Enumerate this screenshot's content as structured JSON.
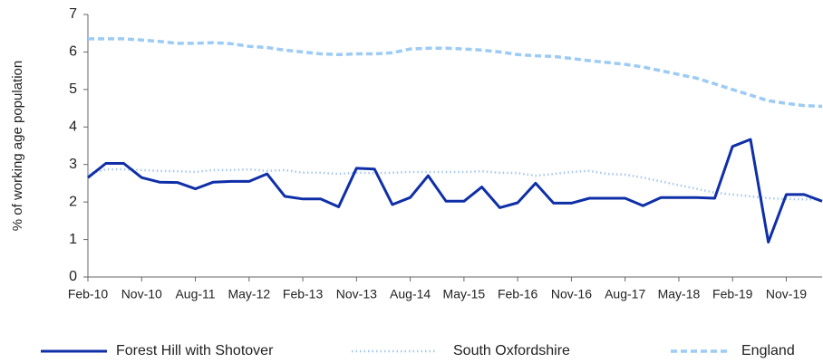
{
  "chart_data": {
    "type": "line",
    "ylabel": "% of working age population",
    "categories": [
      "Feb-10",
      null,
      null,
      "Nov-10",
      null,
      null,
      "Aug-11",
      null,
      null,
      "May-12",
      null,
      null,
      "Feb-13",
      null,
      null,
      "Nov-13",
      null,
      null,
      "Aug-14",
      null,
      null,
      "May-15",
      null,
      null,
      "Feb-16",
      null,
      null,
      "Nov-16",
      null,
      null,
      "Aug-17",
      null,
      null,
      "May-18",
      null,
      null,
      "Feb-19",
      null,
      null,
      "Nov-19",
      null,
      null
    ],
    "series": [
      {
        "name": "Forest Hill with Shotover",
        "color": "#0f2fa8",
        "dash": "solid",
        "values": [
          2.65,
          3.03,
          3.03,
          2.65,
          2.53,
          2.52,
          2.35,
          2.53,
          2.55,
          2.55,
          2.75,
          2.15,
          2.08,
          2.08,
          1.87,
          2.9,
          2.88,
          1.93,
          2.12,
          2.7,
          2.02,
          2.02,
          2.4,
          1.85,
          1.98,
          2.5,
          1.97,
          1.97,
          2.1,
          2.1,
          2.1,
          1.9,
          2.12,
          2.12,
          2.12,
          2.1,
          3.48,
          3.67,
          0.93,
          2.2,
          2.2,
          2.02
        ]
      },
      {
        "name": "South Oxfordshire",
        "color": "#a6c8ee",
        "dash": "dotted",
        "values": [
          2.75,
          2.87,
          2.87,
          2.85,
          2.83,
          2.82,
          2.8,
          2.85,
          2.85,
          2.87,
          2.83,
          2.85,
          2.78,
          2.78,
          2.75,
          2.78,
          2.77,
          2.78,
          2.8,
          2.8,
          2.8,
          2.8,
          2.82,
          2.78,
          2.77,
          2.7,
          2.75,
          2.8,
          2.83,
          2.75,
          2.73,
          2.65,
          2.55,
          2.45,
          2.35,
          2.25,
          2.2,
          2.15,
          2.1,
          2.08,
          2.07,
          2.07
        ]
      },
      {
        "name": "England",
        "color": "#9ccbf5",
        "dash": "dashed",
        "values": [
          6.35,
          6.35,
          6.35,
          6.32,
          6.28,
          6.23,
          6.23,
          6.25,
          6.22,
          6.15,
          6.12,
          6.05,
          6.0,
          5.95,
          5.93,
          5.95,
          5.95,
          5.98,
          6.08,
          6.1,
          6.1,
          6.08,
          6.05,
          6.0,
          5.93,
          5.9,
          5.88,
          5.83,
          5.77,
          5.72,
          5.67,
          5.6,
          5.5,
          5.4,
          5.3,
          5.15,
          5.0,
          4.85,
          4.7,
          4.63,
          4.57,
          4.55
        ]
      }
    ],
    "ylim": [
      0,
      7
    ],
    "yticks": [
      0,
      1,
      2,
      3,
      4,
      5,
      6,
      7
    ],
    "grid": false,
    "legend": "bottom"
  }
}
